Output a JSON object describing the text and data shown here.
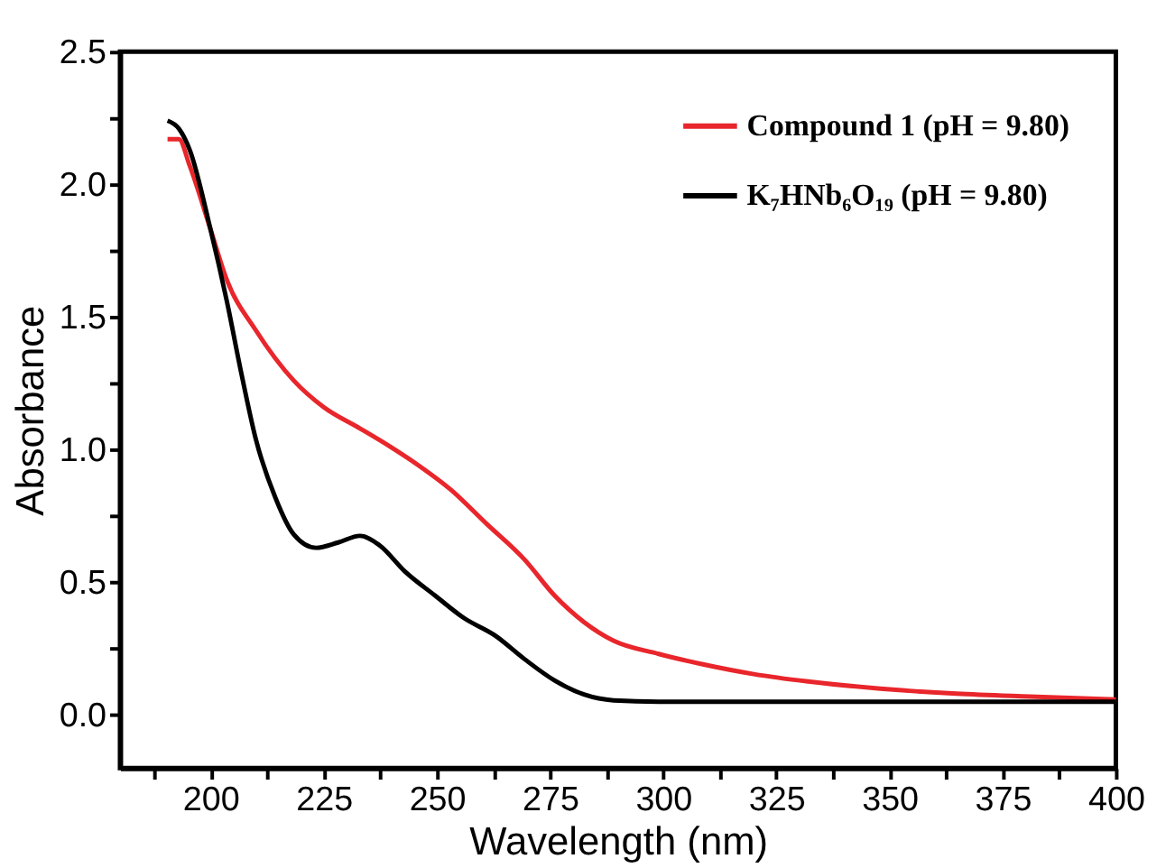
{
  "chart_data": {
    "type": "line",
    "xlabel": "Wavelength (nm)",
    "ylabel": "Absorbance",
    "xlim": [
      180,
      400
    ],
    "ylim": [
      -0.2,
      2.5
    ],
    "xticks": [
      {
        "value": 187.5,
        "label": null
      },
      200,
      {
        "value": 212.5,
        "label": null
      },
      225,
      {
        "value": 237.5,
        "label": null
      },
      250,
      {
        "value": 262.5,
        "label": null
      },
      275,
      {
        "value": 287.5,
        "label": null
      },
      300,
      {
        "value": 312.5,
        "label": null
      },
      325,
      {
        "value": 337.5,
        "label": null
      },
      350,
      {
        "value": 362.5,
        "label": null
      },
      375,
      {
        "value": 387.5,
        "label": null
      },
      400
    ],
    "yticks": [
      {
        "value": 0,
        "label": "0.0"
      },
      {
        "value": 0.25,
        "label": null
      },
      0.5,
      {
        "value": 0.75,
        "label": null
      },
      {
        "value": 1,
        "label": "1.0"
      },
      {
        "value": 1.25,
        "label": null
      },
      1.5,
      {
        "value": 1.75,
        "label": null
      },
      {
        "value": 2,
        "label": "2.0"
      },
      {
        "value": 2.25,
        "label": null
      },
      2.5
    ],
    "grid": false,
    "legend": "top right",
    "line_style": "solid",
    "marker": "none",
    "series": [
      {
        "name": "Compound 1 (pH = 9.80)",
        "color": "#e8262b",
        "x": [
          190.5,
          193,
          195.4,
          200,
          203.6,
          210,
          218.4,
          225,
          233,
          239.8,
          246,
          253,
          261,
          269.4,
          276,
          282.5,
          289,
          299,
          309,
          320,
          332,
          348,
          364.8,
          381,
          400
        ],
        "values": [
          2.17,
          2.17,
          2.07,
          1.83,
          1.64,
          1.45,
          1.26,
          1.16,
          1.08,
          1.01,
          0.94,
          0.85,
          0.72,
          0.585,
          0.45,
          0.35,
          0.28,
          0.23,
          0.19,
          0.154,
          0.126,
          0.099,
          0.08,
          0.069,
          0.058
        ]
      },
      {
        "name": "K₇HNb₆O₁₉ (pH = 9.80)",
        "color": "#000000",
        "x": [
          190.5,
          193,
          195.4,
          200,
          203.6,
          206.9,
          210,
          214.3,
          218.4,
          223.3,
          228.2,
          233,
          237.3,
          243,
          249.6,
          256,
          262.8,
          269.4,
          276,
          282.5,
          289,
          299,
          332,
          400
        ],
        "values": [
          2.24,
          2.21,
          2.13,
          1.83,
          1.56,
          1.28,
          1.04,
          0.82,
          0.68,
          0.63,
          0.65,
          0.675,
          0.64,
          0.54,
          0.45,
          0.365,
          0.3,
          0.21,
          0.13,
          0.077,
          0.055,
          0.05,
          0.05,
          0.05
        ]
      }
    ]
  }
}
